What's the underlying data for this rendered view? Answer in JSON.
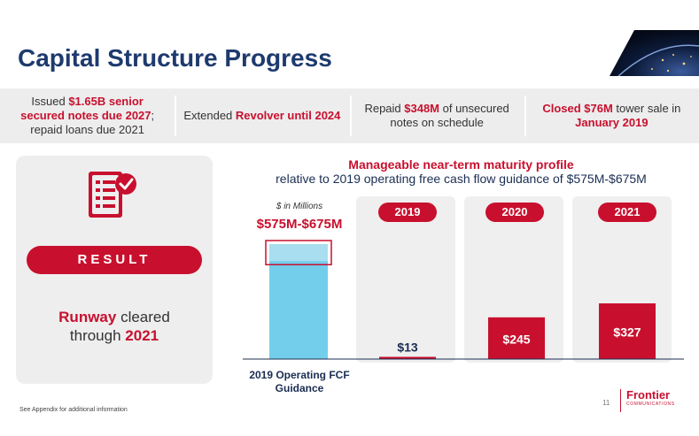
{
  "title": "Capital Structure Progress",
  "topbar": [
    {
      "pre": "Issued ",
      "bold1": "$1.65B senior secured notes due 2027",
      "post": "; repaid loans due 2021"
    },
    {
      "pre": "Extended ",
      "bold1": "Revolver until 2024",
      "post": ""
    },
    {
      "pre": "Repaid ",
      "bold1": "$348M",
      "post": " of unsecured notes on schedule"
    },
    {
      "pre": "",
      "bold1": "Closed $76M",
      "post": " tower sale in ",
      "bold2": "January 2019"
    }
  ],
  "result": {
    "label": "RESULT",
    "line1_bold": "Runway",
    "line1_rest": " cleared",
    "line2_pre": "through ",
    "line2_bold": "2021"
  },
  "chart_data": {
    "type": "bar",
    "title": "Manageable near-term maturity profile",
    "subtitle": "relative to 2019 operating free cash flow guidance of $575M-$675M",
    "units_label": "$ in Millions",
    "guidance": {
      "label": "2019 Operating FCF Guidance",
      "range_label": "$575M-$675M",
      "low": 575,
      "high": 675
    },
    "categories": [
      "2019",
      "2020",
      "2021"
    ],
    "values": [
      13,
      245,
      327
    ],
    "value_labels": [
      "$13",
      "$245",
      "$327"
    ],
    "ylim": [
      0,
      675
    ]
  },
  "footnote": "See Appendix for additional information",
  "page_number": "11",
  "logo": {
    "brand": "Frontier",
    "sub": "COMMUNICATIONS"
  },
  "colors": {
    "navy": "#1e3a6e",
    "red": "#c8102e",
    "light_blue": "#5bc6e8",
    "gray": "#ededed"
  }
}
